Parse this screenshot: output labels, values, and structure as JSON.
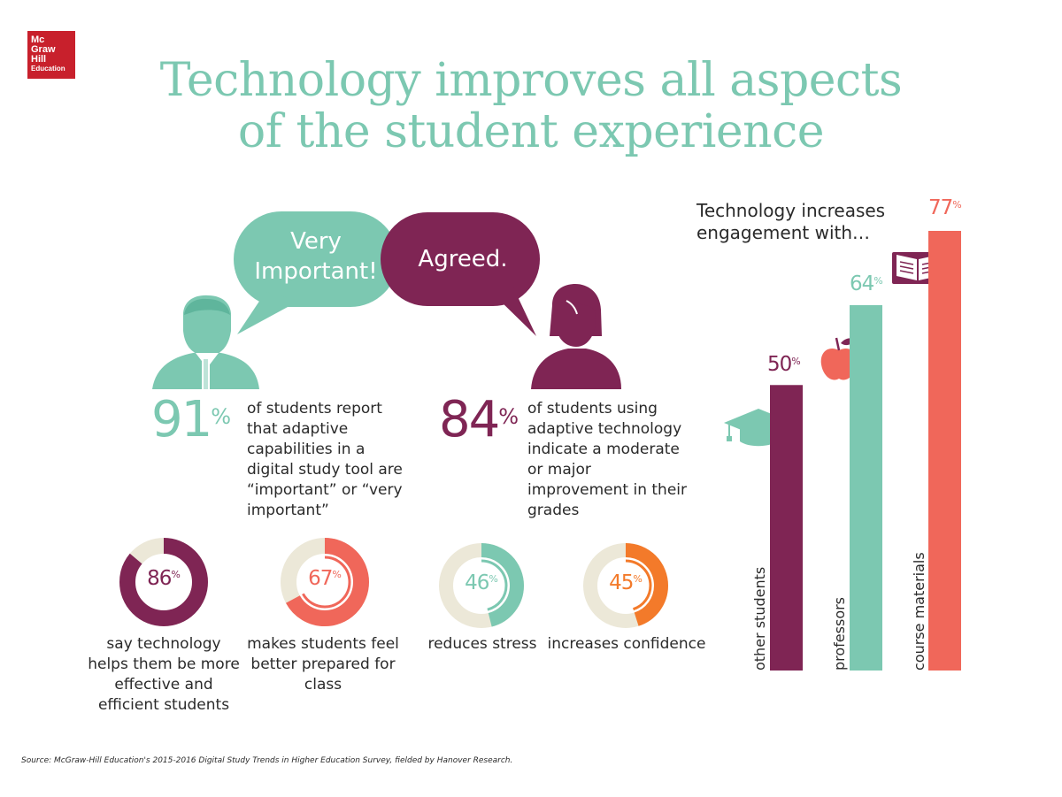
{
  "logo": {
    "line1": "Mc",
    "line2": "Graw",
    "line3": "Hill",
    "line4": "Education"
  },
  "title": {
    "line1": "Technology improves all aspects",
    "line2": "of the student experience"
  },
  "bubbles": {
    "left": {
      "line1": "Very",
      "line2": "Important!"
    },
    "right": {
      "text": "Agreed."
    }
  },
  "stats": [
    {
      "value": "91",
      "unit": "%",
      "description": "of students report that adaptive capabilities in a digital study tool are “important” or “very important”"
    },
    {
      "value": "84",
      "unit": "%",
      "description": "of students using adaptive technology indicate a moderate or major improvement in their grades"
    }
  ],
  "donuts": [
    {
      "value": "86",
      "unit": "%",
      "description": "say technology helps them be more effective and efficient students"
    },
    {
      "value": "67",
      "unit": "%",
      "description": "makes students feel better prepared for class"
    },
    {
      "value": "46",
      "unit": "%",
      "description": "reduces stress"
    },
    {
      "value": "45",
      "unit": "%",
      "description": "increases confidence"
    }
  ],
  "bar_heading": "Technology increases engagement with…",
  "source": "Source: McGraw-Hill Education's 2015-2016 Digital Study Trends in Higher Education Survey, fielded by Hanover Research.",
  "colors": {
    "teal": "#7cc8b1",
    "plum": "#7f2554",
    "coral": "#f0675a",
    "orange": "#f37a2a",
    "track": "#ece8d8",
    "logo_red": "#c8202c"
  },
  "chart_data": [
    {
      "type": "bar",
      "title": "Technology increases engagement with…",
      "categories": [
        "other students",
        "professors",
        "course materials"
      ],
      "values": [
        50,
        64,
        77
      ],
      "unit": "%",
      "ylim": [
        0,
        100
      ],
      "colors": [
        "#7f2554",
        "#7cc8b1",
        "#f0675a"
      ]
    },
    {
      "type": "pie",
      "style": "donut",
      "series": [
        {
          "name": "say technology helps them be more effective and efficient students",
          "value": 86,
          "color": "#7f2554"
        },
        {
          "name": "makes students feel better prepared for class",
          "value": 67,
          "color": "#f0675a"
        },
        {
          "name": "reduces stress",
          "value": 46,
          "color": "#7cc8b1"
        },
        {
          "name": "increases confidence",
          "value": 45,
          "color": "#f37a2a"
        }
      ]
    }
  ]
}
